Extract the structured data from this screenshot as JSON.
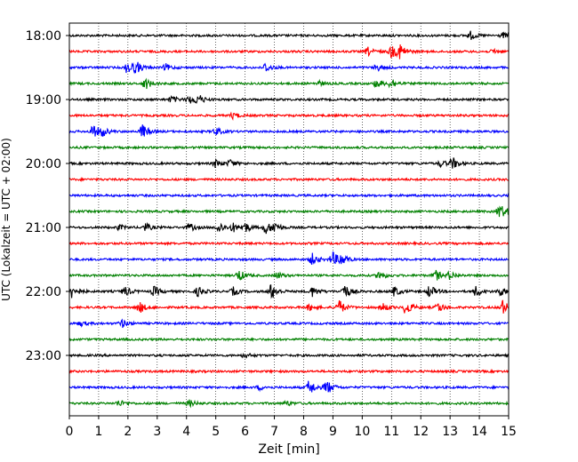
{
  "chart_data": {
    "type": "line",
    "subtype": "helicorder",
    "xlabel": "Zeit  [min]",
    "ylabel": "UTC (Lokalzeit = UTC + 02:00)",
    "xlim": [
      0,
      15
    ],
    "x_ticks": [
      0,
      1,
      2,
      3,
      4,
      5,
      6,
      7,
      8,
      9,
      10,
      11,
      12,
      13,
      14,
      15
    ],
    "x_grid": "dotted vertical",
    "trace_interval_min": 15,
    "trace_colors": [
      "#000000",
      "#ff0000",
      "#0000ff",
      "#008000"
    ],
    "y_tick_labels": [
      "18:00",
      "19:00",
      "20:00",
      "21:00",
      "22:00",
      "23:00"
    ],
    "traces": [
      {
        "time": "18:00",
        "color": "#000000",
        "events": [
          [
            13.7,
            0.5
          ],
          [
            14.8,
            0.3
          ]
        ]
      },
      {
        "time": "18:15",
        "color": "#ff0000",
        "events": [
          [
            10.2,
            0.5
          ],
          [
            11.0,
            0.8
          ],
          [
            11.3,
            0.9
          ],
          [
            14.5,
            0.3
          ]
        ]
      },
      {
        "time": "18:30",
        "color": "#0000ff",
        "events": [
          [
            2.0,
            0.9
          ],
          [
            2.3,
            0.6
          ],
          [
            3.3,
            0.4
          ],
          [
            6.7,
            0.6
          ],
          [
            10.5,
            0.4
          ]
        ]
      },
      {
        "time": "18:45",
        "color": "#008000",
        "events": [
          [
            2.6,
            0.7
          ],
          [
            8.5,
            0.3
          ],
          [
            10.5,
            0.5
          ],
          [
            11.0,
            0.6
          ]
        ]
      },
      {
        "time": "19:00",
        "color": "#000000",
        "events": [
          [
            3.5,
            0.4
          ],
          [
            4.1,
            0.5
          ],
          [
            4.4,
            0.6
          ]
        ]
      },
      {
        "time": "19:15",
        "color": "#ff0000",
        "events": [
          [
            5.6,
            0.4
          ]
        ]
      },
      {
        "time": "19:30",
        "color": "#0000ff",
        "events": [
          [
            0.8,
            0.8
          ],
          [
            1.1,
            0.6
          ],
          [
            2.5,
            0.9
          ],
          [
            5.0,
            0.5
          ]
        ]
      },
      {
        "time": "19:45",
        "color": "#008000",
        "events": []
      },
      {
        "time": "20:00",
        "color": "#000000",
        "events": [
          [
            5.0,
            0.5
          ],
          [
            5.5,
            0.4
          ],
          [
            12.7,
            0.4
          ],
          [
            13.1,
            0.7
          ]
        ]
      },
      {
        "time": "20:15",
        "color": "#ff0000",
        "events": []
      },
      {
        "time": "20:30",
        "color": "#0000ff",
        "events": []
      },
      {
        "time": "20:45",
        "color": "#008000",
        "events": [
          [
            14.7,
            1.0
          ]
        ]
      },
      {
        "time": "21:00",
        "color": "#000000",
        "events": [
          [
            1.7,
            0.3
          ],
          [
            2.6,
            0.5
          ],
          [
            4.1,
            0.5
          ],
          [
            5.1,
            0.7
          ],
          [
            5.6,
            0.5
          ],
          [
            6.0,
            0.6
          ],
          [
            6.7,
            0.8
          ],
          [
            7.0,
            0.6
          ]
        ]
      },
      {
        "time": "21:15",
        "color": "#ff0000",
        "events": []
      },
      {
        "time": "21:30",
        "color": "#0000ff",
        "events": [
          [
            8.3,
            0.7
          ],
          [
            9.0,
            0.9
          ],
          [
            9.3,
            0.7
          ]
        ]
      },
      {
        "time": "21:45",
        "color": "#008000",
        "events": [
          [
            5.8,
            0.7
          ],
          [
            7.1,
            0.4
          ],
          [
            10.6,
            0.6
          ],
          [
            12.5,
            0.7
          ],
          [
            13.0,
            0.5
          ]
        ]
      },
      {
        "time": "22:00",
        "color": "#000000",
        "events": [
          [
            0.1,
            0.9
          ],
          [
            1.9,
            0.6
          ],
          [
            2.9,
            0.6
          ],
          [
            4.4,
            0.6
          ],
          [
            5.6,
            0.5
          ],
          [
            6.9,
            1.0
          ],
          [
            8.3,
            0.6
          ],
          [
            9.4,
            0.9
          ],
          [
            11.1,
            0.6
          ],
          [
            12.3,
            0.8
          ],
          [
            13.9,
            0.7
          ],
          [
            14.7,
            0.6
          ]
        ]
      },
      {
        "time": "22:15",
        "color": "#ff0000",
        "events": [
          [
            2.4,
            0.7
          ],
          [
            8.2,
            0.4
          ],
          [
            9.2,
            1.0
          ],
          [
            10.7,
            0.5
          ],
          [
            11.5,
            1.0
          ],
          [
            12.6,
            0.6
          ],
          [
            14.8,
            0.9
          ]
        ]
      },
      {
        "time": "22:30",
        "color": "#0000ff",
        "events": [
          [
            1.8,
            0.5
          ],
          [
            0.4,
            0.3
          ]
        ]
      },
      {
        "time": "22:45",
        "color": "#008000",
        "events": []
      },
      {
        "time": "23:00",
        "color": "#000000",
        "events": [
          [
            6.0,
            0.3
          ]
        ]
      },
      {
        "time": "23:15",
        "color": "#ff0000",
        "events": []
      },
      {
        "time": "23:30",
        "color": "#0000ff",
        "events": [
          [
            6.5,
            0.3
          ],
          [
            8.2,
            1.0
          ],
          [
            8.8,
            0.9
          ]
        ]
      },
      {
        "time": "23:45",
        "color": "#008000",
        "events": [
          [
            1.7,
            0.4
          ],
          [
            4.1,
            0.4
          ],
          [
            7.4,
            0.3
          ]
        ]
      }
    ]
  }
}
